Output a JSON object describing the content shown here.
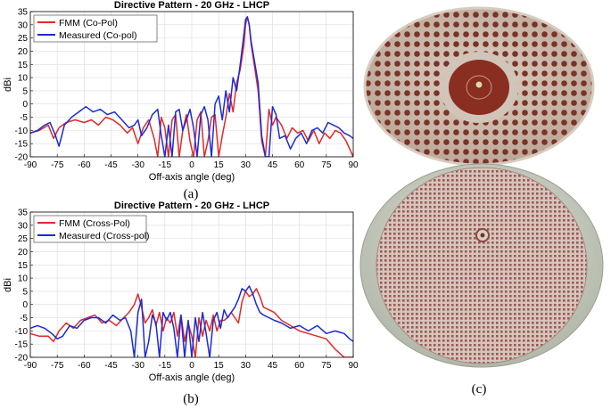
{
  "colors": {
    "fmm": "#e32929",
    "measured": "#1c2bd6",
    "grid": "#dcdcdc",
    "axis": "#000000"
  },
  "captions": {
    "a": "(a)",
    "b": "(b)",
    "c": "(c)"
  },
  "photos": {
    "top": {
      "description": "photo",
      "colors": {
        "board": "#cdbdb0",
        "dots": "#7a3328",
        "center": "#8a2e22"
      }
    },
    "bottom": {
      "colors": {
        "board": "#c6cbbf",
        "array": "#b58e86"
      }
    }
  },
  "chart_data": [
    {
      "type": "line",
      "title": "Directive Pattern - 20 GHz - LHCP",
      "xlabel": "Off-axis angle (deg)",
      "ylabel": "dBi",
      "xlim": [
        -90,
        90
      ],
      "ylim": [
        -20,
        35
      ],
      "xticks": [
        "-90",
        "-75",
        "-60",
        "-45",
        "-30",
        "-15",
        "0",
        "15",
        "30",
        "45",
        "60",
        "75",
        "90"
      ],
      "yticks": [
        "-20",
        "-15",
        "-10",
        "-5",
        "0",
        "5",
        "10",
        "15",
        "20",
        "25",
        "30",
        "35"
      ],
      "legend_position": "top-left",
      "series": [
        {
          "name": "FMM  (Co-Pol)",
          "color": "#e32929",
          "x": [
            -90,
            -85,
            -80,
            -77,
            -74,
            -70,
            -65,
            -60,
            -56,
            -52,
            -48,
            -44,
            -40,
            -36,
            -33,
            -30,
            -27,
            -24,
            -21,
            -19,
            -17,
            -15,
            -13,
            -11,
            -9,
            -7,
            -5,
            -3,
            -1,
            1,
            3,
            5,
            7,
            9,
            11,
            13,
            15,
            17,
            19,
            21,
            23,
            25,
            27,
            29,
            30,
            31,
            32,
            33,
            35,
            37,
            39,
            41,
            43,
            45,
            47,
            50,
            53,
            56,
            59,
            62,
            65,
            68,
            71,
            74,
            77,
            80,
            83,
            86,
            90
          ],
          "y": [
            -11,
            -10,
            -8,
            -13,
            -9,
            -7,
            -6,
            -7,
            -6,
            -8,
            -5,
            -6,
            -8,
            -11,
            -9,
            -15,
            -9,
            -6,
            -13,
            -20,
            -5,
            -9,
            -20,
            -6,
            -4,
            -20,
            -10,
            -4,
            -14,
            -20,
            -6,
            -3,
            -20,
            -14,
            -5,
            -4,
            -20,
            -12,
            -5,
            4,
            -3,
            8,
            13,
            22,
            30,
            33,
            30,
            23,
            14,
            5,
            -14,
            -20,
            -2,
            -8,
            -5,
            -8,
            -13,
            -9,
            -11,
            -10,
            -14,
            -10,
            -15,
            -11,
            -13,
            -10,
            -11,
            -14,
            -20
          ]
        },
        {
          "name": "Measured (Co-pol)",
          "color": "#1c2bd6",
          "x": [
            -90,
            -86,
            -82,
            -79,
            -76,
            -74,
            -71,
            -67,
            -63,
            -59,
            -55,
            -51,
            -47,
            -43,
            -39,
            -35,
            -32,
            -30,
            -28,
            -25,
            -22,
            -19,
            -17,
            -15,
            -13,
            -11,
            -9,
            -7,
            -5,
            -3,
            -1,
            1,
            3,
            5,
            7,
            9,
            11,
            13,
            15,
            17,
            19,
            21,
            23,
            25,
            27,
            29,
            30,
            31,
            32,
            33,
            35,
            37,
            39,
            41,
            43,
            45,
            47,
            49,
            52,
            55,
            58,
            61,
            64,
            67,
            70,
            73,
            76,
            79,
            82,
            85,
            88,
            90
          ],
          "y": [
            -11,
            -10,
            -8,
            -7,
            -12,
            -16,
            -8,
            -5,
            -3,
            -1,
            -3,
            -2,
            -4,
            -3,
            -6,
            -9,
            -8,
            -6,
            -12,
            -9,
            -4,
            -2,
            -12,
            -20,
            -8,
            -20,
            -3,
            -2,
            -10,
            -6,
            -2,
            -9,
            -20,
            -4,
            -1,
            -6,
            -20,
            0,
            3,
            -6,
            5,
            -3,
            10,
            5,
            15,
            26,
            32,
            33,
            30,
            24,
            16,
            8,
            -12,
            -20,
            -20,
            -1,
            -4,
            -13,
            -12,
            -17,
            -13,
            -11,
            -15,
            -10,
            -9,
            -11,
            -7,
            -8,
            -9,
            -11,
            -12,
            -13
          ]
        }
      ]
    },
    {
      "type": "line",
      "title": "Directive Pattern - 20 GHz - LHCP",
      "xlabel": "Off-axis angle (deg)",
      "ylabel": "dBi",
      "xlim": [
        -90,
        90
      ],
      "ylim": [
        -20,
        35
      ],
      "xticks": [
        "-90",
        "-75",
        "-60",
        "-45",
        "-30",
        "-15",
        "0",
        "15",
        "30",
        "45",
        "60",
        "75",
        "90"
      ],
      "yticks": [
        "-20",
        "-15",
        "-10",
        "-5",
        "0",
        "5",
        "10",
        "15",
        "20",
        "25",
        "30",
        "35"
      ],
      "legend_position": "top-left",
      "series": [
        {
          "name": "FMM  (Cross-Pol)",
          "color": "#e32929",
          "x": [
            -90,
            -85,
            -80,
            -77,
            -74,
            -70,
            -66,
            -62,
            -58,
            -54,
            -50,
            -46,
            -42,
            -38,
            -35,
            -32,
            -30,
            -28,
            -26,
            -24,
            -22,
            -20,
            -18,
            -16,
            -14,
            -12,
            -10,
            -8,
            -6,
            -4,
            -2,
            0,
            2,
            4,
            6,
            8,
            10,
            12,
            14,
            16,
            18,
            20,
            22,
            24,
            26,
            28,
            30,
            32,
            34,
            36,
            38,
            40,
            43,
            46,
            50,
            55,
            60,
            65,
            70,
            75,
            80,
            85,
            90
          ],
          "y": [
            -11,
            -12,
            -12,
            -14,
            -10,
            -7,
            -9,
            -6,
            -5,
            -4,
            -7,
            -6,
            -8,
            -5,
            -3,
            0,
            4,
            -1,
            -7,
            -5,
            -2,
            -8,
            -3,
            -10,
            -5,
            -7,
            -3,
            -12,
            -4,
            -14,
            -7,
            -12,
            -20,
            -5,
            -12,
            -6,
            -10,
            -4,
            -10,
            -6,
            -6,
            -5,
            -3,
            -5,
            -7,
            1,
            5,
            3,
            4,
            6,
            3,
            -1,
            -2,
            -3,
            -6,
            -8,
            -10,
            -11,
            -12,
            -13,
            -17,
            -20,
            -20
          ]
        },
        {
          "name": "Measured (Cross-pol)",
          "color": "#1c2bd6",
          "x": [
            -90,
            -86,
            -82,
            -78,
            -75,
            -72,
            -68,
            -64,
            -60,
            -56,
            -52,
            -48,
            -44,
            -40,
            -37,
            -34,
            -32,
            -30,
            -28,
            -26,
            -24,
            -22,
            -20,
            -18,
            -16,
            -14,
            -12,
            -10,
            -8,
            -6,
            -4,
            -2,
            0,
            2,
            4,
            6,
            8,
            10,
            12,
            14,
            16,
            18,
            20,
            22,
            24,
            26,
            28,
            30,
            32,
            34,
            36,
            38,
            40,
            43,
            46,
            50,
            55,
            60,
            65,
            70,
            75,
            80,
            85,
            88,
            90
          ],
          "y": [
            -9,
            -8,
            -9,
            -11,
            -13,
            -12,
            -8,
            -9,
            -6,
            -5,
            -5,
            -7,
            -4,
            -6,
            -5,
            -10,
            -20,
            -3,
            2,
            -20,
            -14,
            -4,
            -7,
            -20,
            -3,
            -6,
            -3,
            -9,
            -20,
            -4,
            -20,
            -6,
            -20,
            -5,
            -14,
            -3,
            -11,
            -20,
            -6,
            -3,
            -9,
            -2,
            -5,
            -3,
            -1,
            2,
            6,
            5,
            7,
            4,
            0,
            -3,
            -4,
            -5,
            -6,
            -7,
            -9,
            -8,
            -10,
            -8,
            -11,
            -10,
            -11,
            -13,
            -14
          ]
        }
      ]
    }
  ]
}
